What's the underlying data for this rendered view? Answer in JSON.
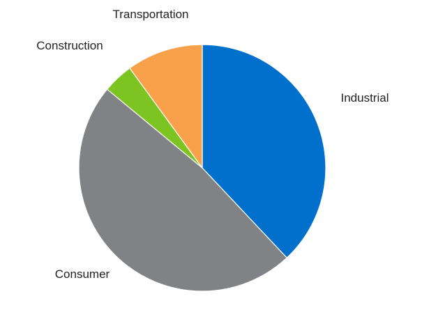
{
  "chart_data": {
    "type": "pie",
    "title": "",
    "categories": [
      "Industrial",
      "Consumer",
      "Construction",
      "Transportation"
    ],
    "values": [
      38,
      48,
      4,
      10
    ],
    "colors": [
      "#0070CC",
      "#808285",
      "#7DC422",
      "#F9A04A"
    ],
    "legend": "none",
    "labels_outside": true
  }
}
